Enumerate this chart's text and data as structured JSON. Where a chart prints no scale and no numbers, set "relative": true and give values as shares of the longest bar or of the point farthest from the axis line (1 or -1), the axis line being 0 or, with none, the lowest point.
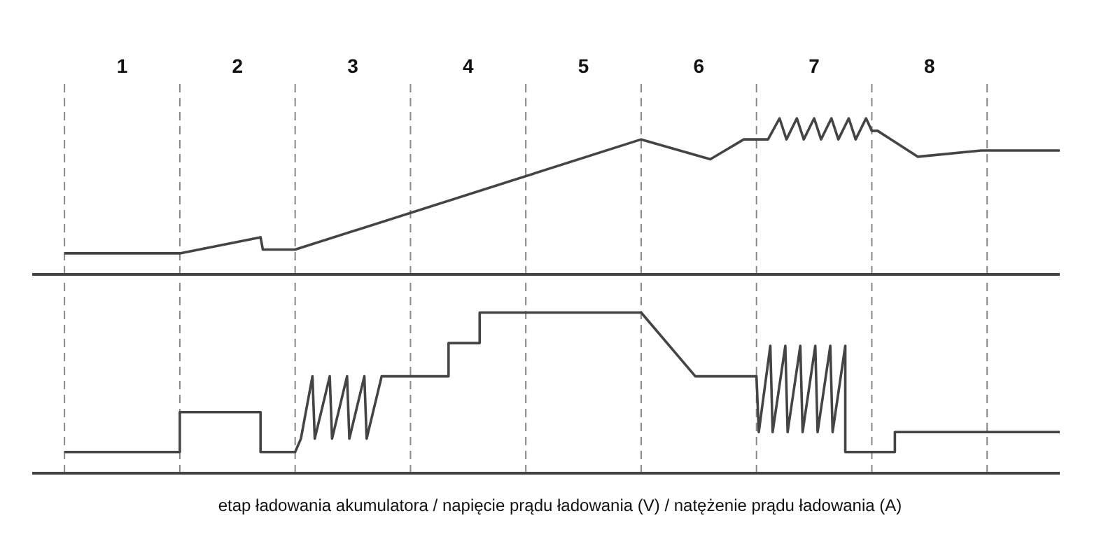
{
  "chart_data": [
    {
      "type": "line",
      "relative": true,
      "marker": "none",
      "line_style": "solid",
      "grid": false,
      "legend": false,
      "tick_labels": "x",
      "xlim": [
        -0.28,
        8.63
      ],
      "xticks": [
        {
          "value": 0.5,
          "label": "1"
        },
        {
          "value": 1.5,
          "label": "2"
        },
        {
          "value": 2.5,
          "label": "3"
        },
        {
          "value": 3.5,
          "label": "4"
        },
        {
          "value": 4.5,
          "label": "5"
        },
        {
          "value": 5.5,
          "label": "6"
        },
        {
          "value": 6.5,
          "label": "7"
        },
        {
          "value": 7.5,
          "label": "8"
        }
      ],
      "series": [
        {
          "color": "#444444",
          "x": [
            0,
            1,
            1.7,
            1.72,
            2,
            5,
            5.6,
            5.89,
            6.1,
            6.2,
            6.26,
            6.35,
            6.41,
            6.5,
            6.56,
            6.65,
            6.71,
            6.8,
            6.86,
            6.95,
            7.0,
            7.05,
            7.4,
            7.95,
            8.63
          ],
          "values": [
            0.135,
            0.135,
            0.238,
            0.159,
            0.159,
            0.865,
            0.738,
            0.865,
            0.865,
            1,
            0.865,
            1,
            0.865,
            1,
            0.865,
            1,
            0.865,
            1,
            0.865,
            1,
            0.92,
            0.92,
            0.754,
            0.794,
            0.794
          ]
        }
      ],
      "ref_lines": [
        {
          "axis": "x",
          "value": 0,
          "color": "#888888",
          "line_style": "dashed"
        },
        {
          "axis": "x",
          "value": 1,
          "color": "#888888",
          "line_style": "dashed"
        },
        {
          "axis": "x",
          "value": 2,
          "color": "#888888",
          "line_style": "dashed"
        },
        {
          "axis": "x",
          "value": 3,
          "color": "#888888",
          "line_style": "dashed"
        },
        {
          "axis": "x",
          "value": 4,
          "color": "#888888",
          "line_style": "dashed"
        },
        {
          "axis": "x",
          "value": 5,
          "color": "#888888",
          "line_style": "dashed"
        },
        {
          "axis": "x",
          "value": 6,
          "color": "#888888",
          "line_style": "dashed"
        },
        {
          "axis": "x",
          "value": 7,
          "color": "#888888",
          "line_style": "dashed"
        },
        {
          "axis": "x",
          "value": 8,
          "color": "#888888",
          "line_style": "dashed"
        }
      ]
    },
    {
      "type": "line",
      "relative": true,
      "marker": "none",
      "line_style": "solid",
      "grid": false,
      "legend": false,
      "tick_labels": false,
      "xlim": [
        -0.28,
        8.63
      ],
      "series": [
        {
          "color": "#444444",
          "x": [
            0,
            1,
            1,
            1.7,
            1.7,
            2,
            2.05,
            2.15,
            2.17,
            2.3,
            2.32,
            2.45,
            2.47,
            2.6,
            2.62,
            2.75,
            3.33,
            3.33,
            3.6,
            3.6,
            5,
            5.47,
            6,
            6.02,
            6.12,
            6.14,
            6.25,
            6.27,
            6.38,
            6.4,
            6.51,
            6.53,
            6.64,
            6.66,
            6.77,
            6.77,
            7.2,
            7.2,
            8.63
          ],
          "values": [
            0.132,
            0.132,
            0.38,
            0.38,
            0.132,
            0.132,
            0.215,
            0.603,
            0.215,
            0.603,
            0.215,
            0.603,
            0.215,
            0.603,
            0.215,
            0.603,
            0.603,
            0.81,
            0.81,
            1,
            1,
            0.603,
            0.603,
            0.256,
            0.793,
            0.256,
            0.793,
            0.256,
            0.793,
            0.256,
            0.793,
            0.256,
            0.793,
            0.256,
            0.793,
            0.132,
            0.132,
            0.256,
            0.256
          ]
        }
      ],
      "ref_lines": [
        {
          "axis": "x",
          "value": 0,
          "color": "#888888",
          "line_style": "dashed"
        },
        {
          "axis": "x",
          "value": 1,
          "color": "#888888",
          "line_style": "dashed"
        },
        {
          "axis": "x",
          "value": 2,
          "color": "#888888",
          "line_style": "dashed"
        },
        {
          "axis": "x",
          "value": 3,
          "color": "#888888",
          "line_style": "dashed"
        },
        {
          "axis": "x",
          "value": 4,
          "color": "#888888",
          "line_style": "dashed"
        },
        {
          "axis": "x",
          "value": 5,
          "color": "#888888",
          "line_style": "dashed"
        },
        {
          "axis": "x",
          "value": 6,
          "color": "#888888",
          "line_style": "dashed"
        },
        {
          "axis": "x",
          "value": 7,
          "color": "#888888",
          "line_style": "dashed"
        },
        {
          "axis": "x",
          "value": 8,
          "color": "#888888",
          "line_style": "dashed"
        }
      ],
      "annotations": [
        "etap ładowania akumulatora / napięcie prądu ładowania (V) / natężenie prądu ładowania (A)"
      ]
    }
  ]
}
